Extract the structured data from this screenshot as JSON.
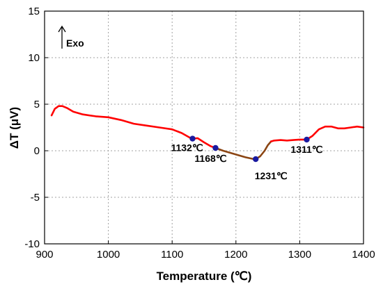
{
  "chart_data": {
    "type": "line",
    "title": "",
    "xlabel": "Temperature (℃)",
    "ylabel": "ΔT (μV)",
    "xlim": [
      900,
      1400
    ],
    "ylim": [
      -10,
      15
    ],
    "x_ticks": [
      900,
      1000,
      1100,
      1200,
      1300,
      1400
    ],
    "y_ticks": [
      -10,
      -5,
      0,
      5,
      10,
      15
    ],
    "grid": true,
    "exo_label": "Exo",
    "series": [
      {
        "color": "#ff0000",
        "x": [
          911,
          916,
          922,
          928,
          935,
          945,
          960,
          980,
          1000,
          1020,
          1040,
          1060,
          1080,
          1100,
          1115,
          1128,
          1132,
          1140,
          1150,
          1160,
          1168
        ],
        "y": [
          3.8,
          4.5,
          4.8,
          4.8,
          4.6,
          4.2,
          3.9,
          3.7,
          3.6,
          3.3,
          2.9,
          2.7,
          2.5,
          2.3,
          1.9,
          1.4,
          1.3,
          1.35,
          0.9,
          0.5,
          0.3
        ]
      },
      {
        "color": "#8b4513",
        "x": [
          1168,
          1180,
          1200,
          1215,
          1225,
          1231,
          1238,
          1245,
          1250,
          1255
        ],
        "y": [
          0.3,
          0.0,
          -0.4,
          -0.7,
          -0.85,
          -0.9,
          -0.6,
          0.0,
          0.6,
          1.0
        ]
      },
      {
        "color": "#ff0000",
        "x": [
          1255,
          1260,
          1270,
          1280,
          1290,
          1300,
          1311,
          1320,
          1330,
          1340,
          1350,
          1360,
          1370,
          1380,
          1390,
          1400
        ],
        "y": [
          1.0,
          1.1,
          1.15,
          1.1,
          1.15,
          1.2,
          1.2,
          1.6,
          2.3,
          2.6,
          2.6,
          2.4,
          2.4,
          2.5,
          2.6,
          2.5
        ]
      }
    ],
    "markers": [
      {
        "x": 1132,
        "y": 1.3,
        "label": "1132℃"
      },
      {
        "x": 1168,
        "y": 0.3,
        "label": "1168℃"
      },
      {
        "x": 1231,
        "y": -0.9,
        "label": "1231℃"
      },
      {
        "x": 1311,
        "y": 1.2,
        "label": "1311℃"
      }
    ],
    "marker_color": "#1a1aa0"
  }
}
